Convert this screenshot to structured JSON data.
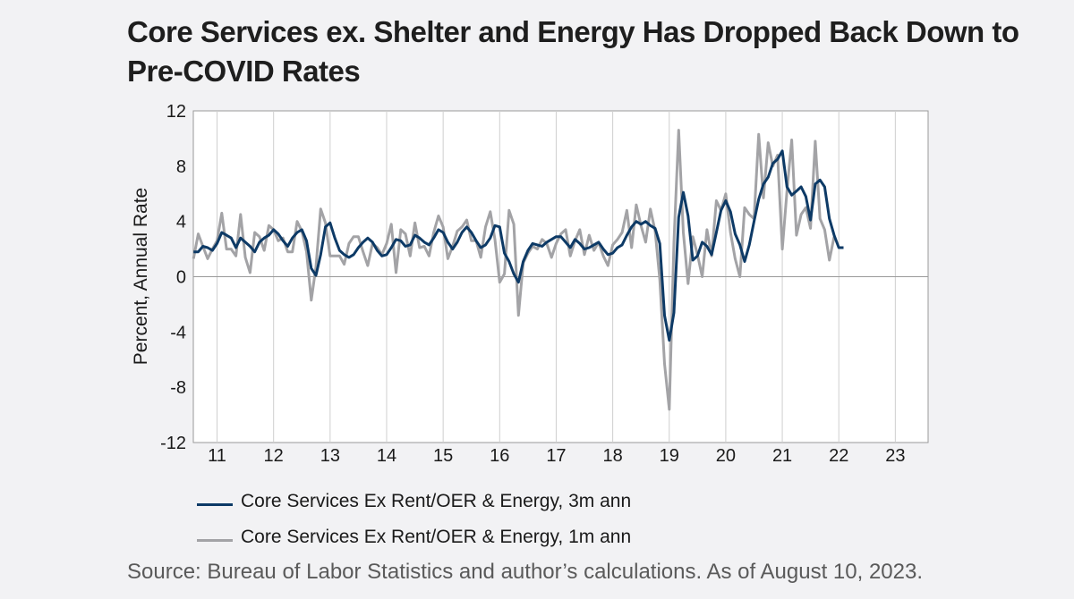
{
  "title": "Core Services ex. Shelter and Energy Has Dropped Back Down to Pre-COVID Rates",
  "source": "Source: Bureau of Labor Statistics and author’s calculations. As of August 10, 2023.",
  "chart_data": {
    "type": "line",
    "ylabel": "Percent, Annual Rate",
    "ylim": [
      -12,
      12
    ],
    "yticks": [
      "12",
      "8",
      "4",
      "0",
      "-4",
      "-8",
      "-12"
    ],
    "xlim": [
      2010.58,
      2023.58
    ],
    "xticks": [
      {
        "label": "11",
        "year": 2011.0
      },
      {
        "label": "12",
        "year": 2012.0
      },
      {
        "label": "13",
        "year": 2013.0
      },
      {
        "label": "14",
        "year": 2014.0
      },
      {
        "label": "15",
        "year": 2015.0
      },
      {
        "label": "16",
        "year": 2016.0
      },
      {
        "label": "17",
        "year": 2017.0
      },
      {
        "label": "18",
        "year": 2018.0
      },
      {
        "label": "19",
        "year": 2019.0
      },
      {
        "label": "20",
        "year": 2020.0
      },
      {
        "label": "21",
        "year": 2021.0
      },
      {
        "label": "22",
        "year": 2022.0
      },
      {
        "label": "23",
        "year": 2023.0
      }
    ],
    "grid": "vertical",
    "legend_position": "bottom",
    "start": "2010-08",
    "series": [
      {
        "name": "Core Services Ex Rent/OER & Energy, 3m ann",
        "color": "#0d3a66",
        "values": [
          1.8,
          1.8,
          2.2,
          2.1,
          1.9,
          2.4,
          3.2,
          3.0,
          2.8,
          2.1,
          2.8,
          2.5,
          2.2,
          1.8,
          2.5,
          2.8,
          3.0,
          3.4,
          3.1,
          2.6,
          2.2,
          2.8,
          3.2,
          3.4,
          2.6,
          0.6,
          0.1,
          1.6,
          3.6,
          3.9,
          2.8,
          1.9,
          1.6,
          1.4,
          1.6,
          2.1,
          2.5,
          2.8,
          2.5,
          1.9,
          1.5,
          1.6,
          2.1,
          2.7,
          2.6,
          2.2,
          2.3,
          3.0,
          2.8,
          2.5,
          2.3,
          2.8,
          3.4,
          3.2,
          2.5,
          2.0,
          2.5,
          3.2,
          3.6,
          3.2,
          2.6,
          2.1,
          2.3,
          2.8,
          3.7,
          3.6,
          1.7,
          1.1,
          0.2,
          -0.4,
          1.1,
          1.9,
          2.4,
          2.3,
          2.2,
          2.5,
          2.7,
          2.9,
          2.9,
          2.5,
          2.1,
          2.7,
          2.4,
          2.0,
          2.1,
          2.3,
          2.5,
          2.0,
          1.6,
          1.7,
          2.1,
          2.3,
          3.0,
          3.6,
          4.0,
          3.8,
          4.0,
          3.7,
          3.5,
          2.4,
          -2.8,
          -4.6,
          -2.6,
          4.3,
          6.1,
          4.4,
          1.2,
          1.5,
          2.5,
          2.2,
          1.6,
          3.2,
          4.8,
          5.5,
          4.7,
          3.1,
          2.3,
          1.1,
          2.3,
          4.0,
          5.6,
          6.7,
          7.2,
          8.2,
          8.5,
          9.1,
          6.5,
          5.9,
          6.2,
          6.5,
          5.8,
          4.1,
          6.7,
          7.0,
          6.5,
          4.2,
          3.0,
          2.1,
          2.1
        ]
      },
      {
        "name": "Core Services Ex Rent/OER & Energy, 1m ann",
        "color": "#a3a3a6",
        "values": [
          1.3,
          3.1,
          2.2,
          1.3,
          2.0,
          2.6,
          4.6,
          2.0,
          2.0,
          1.5,
          4.5,
          1.4,
          0.3,
          3.2,
          2.9,
          1.9,
          3.7,
          3.4,
          2.6,
          2.8,
          1.8,
          1.8,
          4.0,
          3.3,
          1.8,
          -1.7,
          0.7,
          4.9,
          3.9,
          1.5,
          1.5,
          1.5,
          0.9,
          2.4,
          2.9,
          2.9,
          1.8,
          0.8,
          2.4,
          2.1,
          1.6,
          2.4,
          3.8,
          0.3,
          3.4,
          3.1,
          1.5,
          3.9,
          2.1,
          2.2,
          1.5,
          3.2,
          4.4,
          3.6,
          1.3,
          2.2,
          3.3,
          3.6,
          4.1,
          2.6,
          2.6,
          1.4,
          3.6,
          4.7,
          2.7,
          -0.4,
          0.2,
          4.8,
          3.8,
          -2.8,
          1.0,
          1.7,
          2.2,
          2.0,
          2.7,
          2.4,
          1.4,
          2.4,
          3.1,
          3.4,
          1.5,
          2.6,
          3.4,
          1.6,
          3.0,
          1.9,
          2.5,
          1.5,
          0.8,
          2.3,
          2.7,
          3.2,
          4.8,
          2.1,
          5.2,
          3.7,
          2.5,
          4.9,
          3.3,
          -0.2,
          -6.3,
          -9.6,
          2.5,
          10.6,
          3.2,
          -0.5,
          2.9,
          1.6,
          0.0,
          3.4,
          1.5,
          5.5,
          4.8,
          6.0,
          3.2,
          1.3,
          0.0,
          5.0,
          4.5,
          4.2,
          10.3,
          5.7,
          9.7,
          8.0,
          8.8,
          2.0,
          6.2,
          9.9,
          3.0,
          4.5,
          5.0,
          3.5,
          9.8,
          4.2,
          3.4,
          1.2,
          2.9
        ]
      }
    ]
  }
}
